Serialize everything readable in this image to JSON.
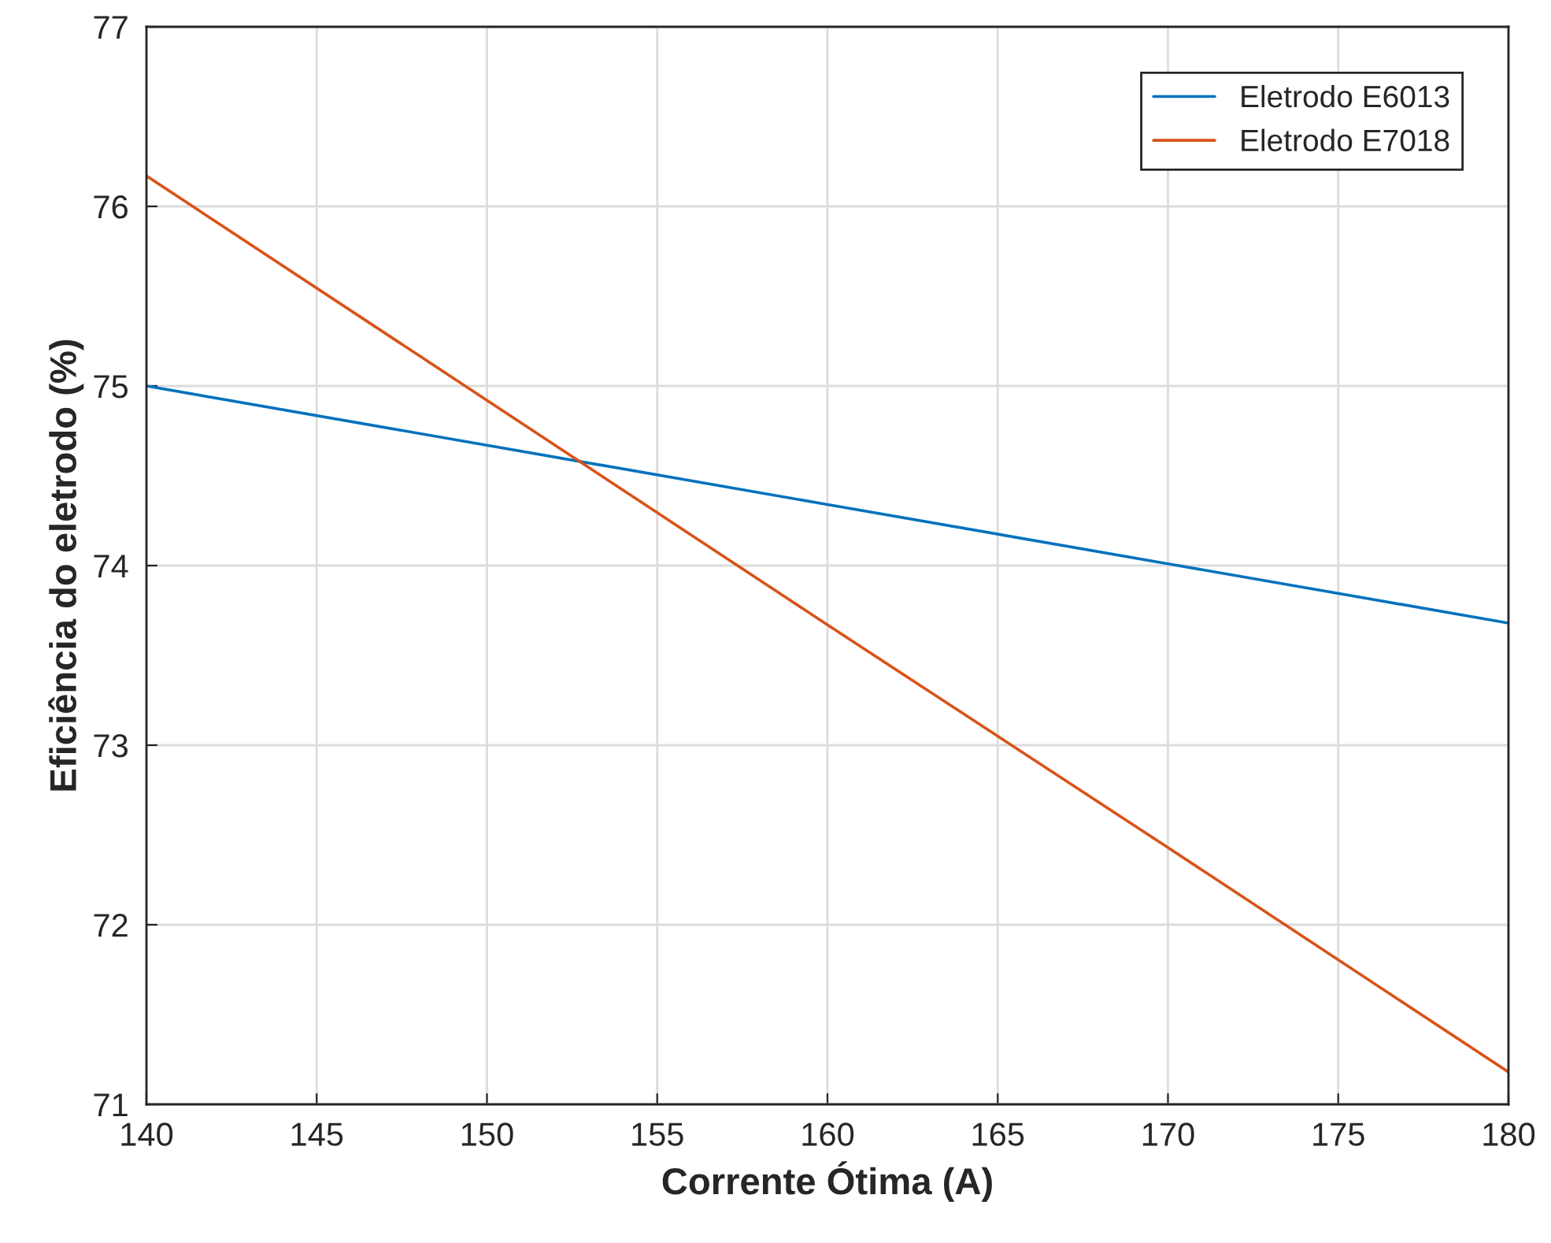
{
  "chart_data": {
    "type": "line",
    "xlabel": "Corrente Ótima (A)",
    "ylabel": "Eficiência do eletrodo (%)",
    "series": [
      {
        "name": "Eletrodo E6013",
        "color": "#0072bd",
        "x": [
          140,
          150,
          160,
          170,
          180
        ],
        "values": [
          75.0,
          74.67,
          74.34,
          74.01,
          73.68
        ]
      },
      {
        "name": "Eletrodo E7018",
        "color": "#d95319",
        "x": [
          140,
          150,
          160,
          170,
          180
        ],
        "values": [
          76.17,
          74.92,
          73.67,
          72.43,
          71.18
        ]
      }
    ],
    "xlim": [
      140,
      180
    ],
    "xticks": [
      140,
      145,
      150,
      155,
      160,
      165,
      170,
      175,
      180
    ],
    "ylim": [
      71,
      77
    ],
    "yticks": [
      71,
      72,
      73,
      74,
      75,
      76,
      77
    ],
    "grid": true,
    "legend": "top right",
    "marker": "none",
    "line_style": "solid"
  }
}
